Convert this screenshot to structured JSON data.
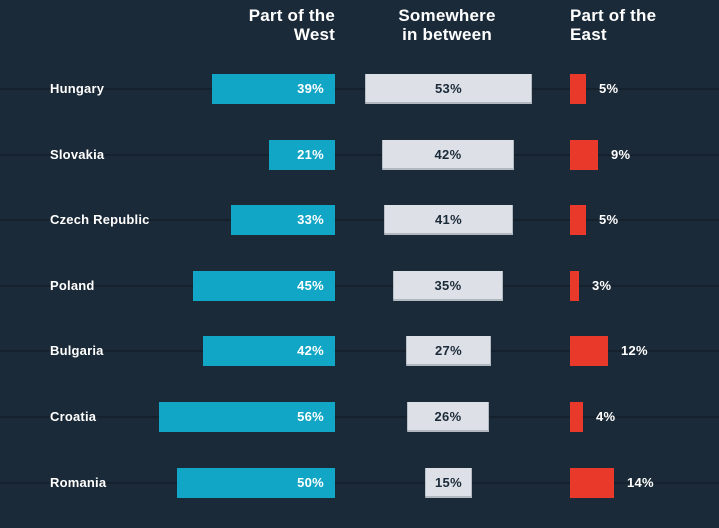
{
  "page": {
    "background_color": "#1b2a38",
    "text_color": "#ffffff"
  },
  "headers": {
    "west": {
      "line1": "Part of the",
      "line2": "West"
    },
    "between": {
      "line1": "Somewhere",
      "line2": "in between"
    },
    "east": {
      "line1": "Part of the",
      "line2": "East"
    }
  },
  "chart_data": {
    "type": "bar",
    "orientation": "horizontal",
    "title": "",
    "xlabel": "",
    "ylabel": "",
    "value_suffix": "%",
    "xlim": [
      0,
      60
    ],
    "grid": "faint horizontal row lines",
    "legend_position": "column-headers-top",
    "categories": [
      "Hungary",
      "Slovakia",
      "Czech Republic",
      "Poland",
      "Bulgaria",
      "Croatia",
      "Romania"
    ],
    "series": [
      {
        "name": "Part of the West",
        "color": "#12a6c6",
        "label_position": "inside-right",
        "label_color": "#ffffff",
        "alignment": "right-edge-fixed",
        "values": [
          39,
          21,
          33,
          45,
          42,
          56,
          50
        ]
      },
      {
        "name": "Somewhere in between",
        "color": "#dde0e7",
        "label_position": "inside-center",
        "label_color": "#1b2a38",
        "alignment": "centered",
        "values": [
          53,
          42,
          41,
          35,
          27,
          26,
          15
        ]
      },
      {
        "name": "Part of the East",
        "color": "#e8392a",
        "label_position": "outside-right",
        "label_color": "#ffffff",
        "alignment": "left-edge-fixed",
        "values": [
          5,
          9,
          5,
          3,
          12,
          4,
          14
        ]
      }
    ]
  }
}
